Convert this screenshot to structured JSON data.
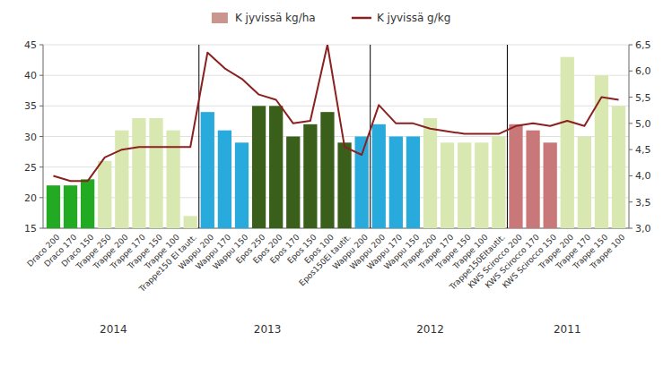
{
  "chart_data": {
    "type": "bar",
    "categories": [
      "Draco 200",
      "Draco 170",
      "Draco 150",
      "Trappe 250",
      "Trappe 200",
      "Trappe 170",
      "Trappe 150",
      "Trappe 100",
      "Trappe150 El tautt.",
      "Wappu 200",
      "Wappu 170",
      "Wappu 150",
      "Epos 250",
      "Epos 200",
      "Epos 170",
      "Epos 150",
      "Epos 100",
      "Epos150Ei tautit.",
      "Wappu 200",
      "Wappu 200",
      "Wappu 170",
      "Wappu 150",
      "Trappe 200",
      "Trappe 170",
      "Trappe 150",
      "Trappe 100",
      "Trappe150EItautit.",
      "KWS Scirocco 200",
      "KWS Scirocco 170",
      "KWS Scirocco 150",
      "Trappe 200",
      "Trappe 170",
      "Trappe 150",
      "Trappe 100"
    ],
    "series": [
      {
        "name": "K jyvissä kg/ha",
        "type": "bar",
        "color": "#C8968C",
        "colors": [
          "#22AA22",
          "#22AA22",
          "#22AA22",
          "#D8E8B0",
          "#D8E8B0",
          "#D8E8B0",
          "#D8E8B0",
          "#D8E8B0",
          "#D8E8B0",
          "#29AADD",
          "#29AADD",
          "#29AADD",
          "#3A5F1A",
          "#3A5F1A",
          "#3A5F1A",
          "#3A5F1A",
          "#3A5F1A",
          "#3A5F1A",
          "#29AADD",
          "#29AADD",
          "#29AADD",
          "#29AADD",
          "#D8E8B0",
          "#D8E8B0",
          "#D8E8B0",
          "#D8E8B0",
          "#D8E8B0",
          "#C87878",
          "#C87878",
          "#C87878",
          "#D8E8B0",
          "#D8E8B0",
          "#D8E8B0",
          "#D8E8B0"
        ],
        "values": [
          22,
          22,
          23,
          26,
          31,
          33,
          33,
          31,
          17,
          34,
          31,
          29,
          35,
          35,
          30,
          32,
          34,
          29,
          30,
          32,
          30,
          30,
          33,
          29,
          29,
          29,
          30,
          32,
          31,
          29,
          43,
          30,
          40,
          35
        ]
      },
      {
        "name": "K jyvissä g/kg",
        "type": "line",
        "color": "#8B2020",
        "axis": "y2",
        "values": [
          4.0,
          3.9,
          3.9,
          4.35,
          4.5,
          4.55,
          4.55,
          4.55,
          4.55,
          6.35,
          6.05,
          5.85,
          5.55,
          5.45,
          5.0,
          5.05,
          6.5,
          4.55,
          4.4,
          5.35,
          5.0,
          5.0,
          4.9,
          4.85,
          4.8,
          4.8,
          4.8,
          4.95,
          5.0,
          4.95,
          5.05,
          4.95,
          5.5,
          5.45
        ]
      }
    ],
    "ylim": [
      15,
      45
    ],
    "yticks": [
      15,
      20,
      25,
      30,
      35,
      40,
      45
    ],
    "y2lim": [
      3.0,
      6.5
    ],
    "y2ticks": [
      {
        "value": 3.0,
        "label": "3,0"
      },
      {
        "value": 3.5,
        "label": "3,5"
      },
      {
        "value": 4.0,
        "label": "4,0"
      },
      {
        "value": 4.5,
        "label": "4,5"
      },
      {
        "value": 5.0,
        "label": "5,0"
      },
      {
        "value": 5.5,
        "label": "5,5"
      },
      {
        "value": 6.0,
        "label": "6,0"
      },
      {
        "value": 6.5,
        "label": "6,5"
      }
    ],
    "dividers": [
      8.5,
      18.5,
      26.5
    ],
    "annotations": [
      {
        "text": "2014",
        "x": 3.5
      },
      {
        "text": "2013",
        "x": 12.5
      },
      {
        "text": "2012",
        "x": 22.0
      },
      {
        "text": "2011",
        "x": 30.0
      }
    ],
    "grid": true,
    "legend": "top"
  }
}
